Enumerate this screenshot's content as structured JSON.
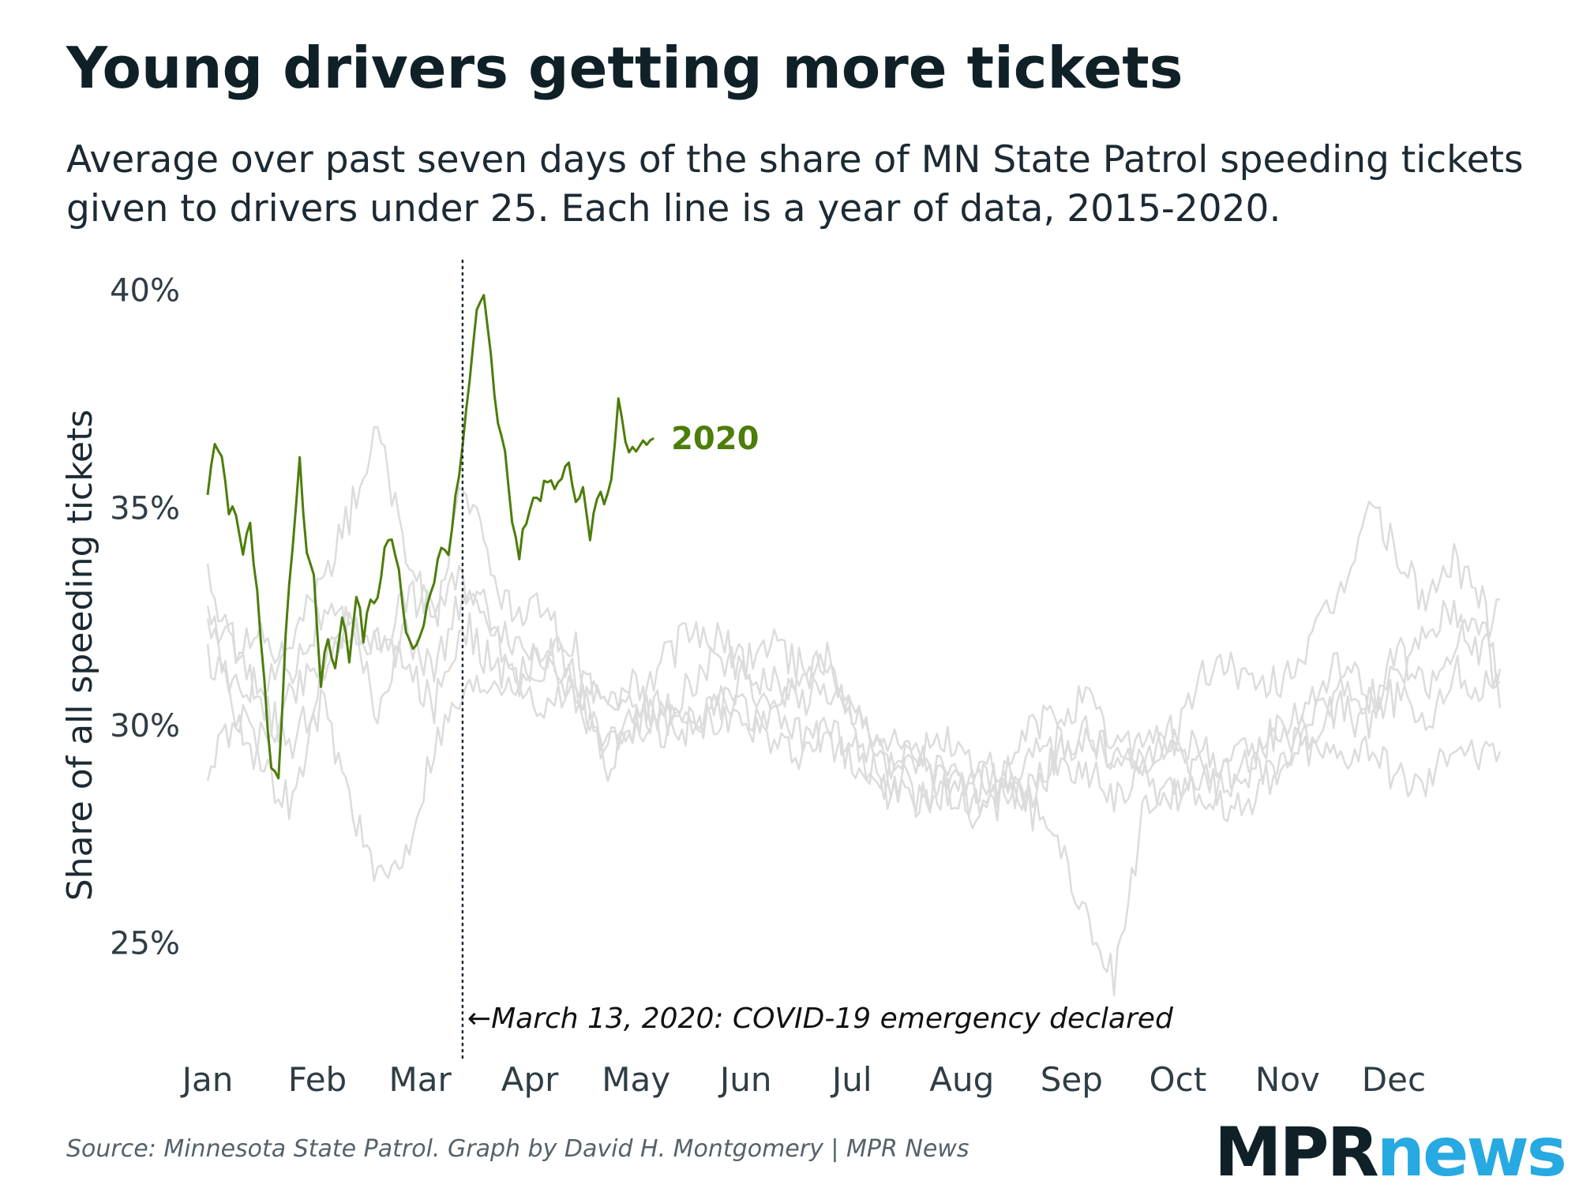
{
  "title": "Young drivers getting more tickets",
  "subtitle": "Average over past seven days of the share of MN State Patrol speeding tickets given to drivers under 25. Each line is a year of data, 2015-2020.",
  "source": "Source: Minnesota State Patrol. Graph by David H. Montgomery | MPR News",
  "logo": {
    "part1": "MPR",
    "part2": "news"
  },
  "colors": {
    "highlight": "#4d7d0a",
    "background_lines": "#dcdcdc",
    "text": "#1c2a33"
  },
  "chart_data": {
    "type": "line",
    "ylabel": "Share of all speeding tickets",
    "ylim": [
      23,
      40.5
    ],
    "yticks": [
      25,
      30,
      35,
      40
    ],
    "ytick_labels": [
      "25%",
      "30%",
      "35%",
      "40%"
    ],
    "x_unit": "day of year",
    "xlim": [
      1,
      366
    ],
    "month_ticks": [
      {
        "label": "Jan",
        "day": 1
      },
      {
        "label": "Feb",
        "day": 32
      },
      {
        "label": "Mar",
        "day": 61
      },
      {
        "label": "Apr",
        "day": 92
      },
      {
        "label": "May",
        "day": 122
      },
      {
        "label": "Jun",
        "day": 153
      },
      {
        "label": "Jul",
        "day": 183
      },
      {
        "label": "Aug",
        "day": 214
      },
      {
        "label": "Sep",
        "day": 245
      },
      {
        "label": "Oct",
        "day": 275
      },
      {
        "label": "Nov",
        "day": 306
      },
      {
        "label": "Dec",
        "day": 336
      }
    ],
    "grid": false,
    "annotation": {
      "day": 73,
      "text": "←March 13, 2020: COVID-19 emergency declared"
    },
    "series": [
      {
        "name": "2020",
        "highlight": true,
        "x": [
          1,
          3,
          5,
          7,
          9,
          11,
          13,
          15,
          17,
          19,
          21,
          23,
          25,
          27,
          29,
          31,
          33,
          35,
          37,
          39,
          41,
          43,
          45,
          47,
          49,
          51,
          53,
          55,
          57,
          59,
          61,
          63,
          65,
          67,
          69,
          71,
          73,
          75,
          77,
          79,
          81,
          83,
          85,
          87,
          89,
          91,
          93,
          95,
          97,
          99,
          101,
          103,
          105,
          107,
          109,
          111,
          113,
          115,
          117,
          119,
          121,
          123,
          125,
          127
        ],
        "values": [
          35.3,
          36.6,
          36.2,
          35.0,
          34.8,
          34.0,
          34.6,
          33.1,
          31.0,
          29.0,
          28.9,
          31.9,
          34.2,
          36.0,
          34.0,
          33.4,
          31.0,
          32.0,
          31.3,
          32.6,
          31.5,
          33.1,
          32.0,
          32.9,
          32.9,
          34.0,
          34.4,
          33.6,
          32.3,
          31.7,
          31.9,
          32.8,
          33.3,
          34.1,
          34.0,
          35.2,
          36.5,
          37.8,
          39.4,
          39.8,
          38.5,
          37.0,
          36.4,
          34.6,
          33.9,
          34.8,
          35.2,
          35.3,
          35.6,
          35.4,
          35.8,
          35.9,
          35.3,
          35.4,
          34.2,
          35.3,
          35.2,
          35.8,
          37.5,
          36.4,
          36.4,
          36.5,
          36.6,
          36.6
        ]
      },
      {
        "name": "",
        "x": [
          1,
          9,
          17,
          25,
          33,
          41,
          49,
          57,
          65,
          73,
          81,
          89,
          97,
          105,
          113,
          121,
          129,
          137,
          145,
          153,
          161,
          169,
          177,
          185,
          193,
          201,
          209,
          217,
          225,
          233,
          241,
          249,
          257,
          265,
          273,
          281,
          289,
          297,
          305,
          313,
          321,
          329,
          337,
          345,
          353,
          361,
          366
        ],
        "values": [
          33.3,
          31.6,
          30.5,
          29.4,
          31.0,
          32.2,
          31.8,
          33.0,
          32.7,
          33.4,
          32.6,
          31.9,
          31.6,
          31.1,
          30.5,
          30.4,
          30.2,
          30.1,
          30.3,
          31.2,
          31.0,
          30.6,
          30.8,
          30.2,
          29.6,
          29.3,
          28.9,
          28.6,
          28.8,
          29.2,
          29.6,
          29.7,
          29.3,
          29.1,
          29.6,
          29.5,
          29.1,
          29.4,
          30.1,
          30.6,
          31.5,
          30.7,
          31.0,
          32.1,
          32.7,
          31.6,
          32.9
        ]
      },
      {
        "name": "",
        "x": [
          1,
          9,
          17,
          25,
          33,
          41,
          49,
          57,
          65,
          73,
          81,
          89,
          97,
          105,
          113,
          121,
          129,
          137,
          145,
          153,
          161,
          169,
          177,
          185,
          193,
          201,
          209,
          217,
          225,
          233,
          241,
          249,
          257,
          265,
          273,
          281,
          289,
          297,
          305,
          313,
          321,
          329,
          337,
          345,
          353,
          361,
          366
        ],
        "values": [
          29.0,
          30.2,
          29.6,
          30.8,
          31.5,
          32.4,
          30.3,
          32.1,
          31.3,
          33.0,
          32.4,
          31.0,
          30.4,
          30.9,
          29.5,
          29.8,
          30.5,
          29.7,
          30.5,
          30.4,
          29.4,
          29.3,
          29.9,
          29.0,
          28.5,
          28.2,
          28.7,
          28.0,
          28.3,
          28.6,
          29.2,
          28.9,
          28.4,
          28.9,
          29.8,
          28.4,
          28.6,
          29.0,
          29.1,
          29.9,
          30.4,
          29.9,
          31.8,
          30.9,
          31.8,
          32.5,
          30.4
        ]
      },
      {
        "name": "",
        "x": [
          1,
          9,
          17,
          25,
          33,
          41,
          49,
          57,
          65,
          73,
          81,
          89,
          97,
          105,
          113,
          121,
          129,
          137,
          145,
          153,
          161,
          169,
          177,
          185,
          193,
          201,
          209,
          217,
          225,
          233,
          241,
          249,
          257,
          265,
          273,
          281,
          289,
          297,
          305,
          313,
          321,
          329,
          337,
          345,
          353,
          361,
          366
        ],
        "values": [
          32.8,
          30.3,
          28.9,
          28.2,
          30.6,
          28.4,
          26.3,
          27.1,
          29.6,
          30.7,
          31.1,
          31.1,
          31.9,
          31.9,
          29.0,
          30.0,
          31.4,
          32.1,
          31.9,
          31.5,
          32.0,
          31.2,
          31.5,
          29.4,
          28.5,
          29.2,
          29.7,
          29.0,
          28.6,
          29.9,
          30.2,
          30.6,
          29.5,
          29.8,
          29.5,
          31.0,
          31.5,
          30.7,
          31.1,
          31.9,
          33.0,
          35.1,
          33.9,
          32.8,
          33.8,
          32.9,
          31.0
        ]
      },
      {
        "name": "",
        "x": [
          1,
          9,
          17,
          25,
          33,
          41,
          49,
          57,
          65,
          73,
          81,
          89,
          97,
          105,
          113,
          121,
          129,
          137,
          145,
          153,
          161,
          169,
          177,
          185,
          193,
          201,
          209,
          217,
          225,
          233,
          241,
          249,
          257,
          265,
          273,
          281,
          289,
          297,
          305,
          313,
          321,
          329,
          337,
          345,
          353,
          361,
          366
        ],
        "values": [
          32.3,
          31.9,
          32.1,
          31.4,
          32.5,
          32.3,
          32.0,
          31.3,
          30.5,
          32.4,
          31.4,
          31.0,
          31.3,
          30.7,
          30.6,
          31.0,
          30.0,
          30.9,
          31.6,
          31.2,
          30.3,
          31.5,
          31.3,
          30.0,
          29.3,
          28.3,
          28.5,
          28.7,
          29.2,
          28.1,
          27.5,
          25.6,
          24.2,
          27.9,
          28.5,
          29.0,
          28.2,
          28.4,
          29.2,
          30.2,
          30.9,
          30.6,
          30.6,
          30.1,
          31.2,
          30.8,
          31.3
        ]
      },
      {
        "name": "",
        "x": [
          1,
          9,
          17,
          25,
          33,
          41,
          49,
          57,
          65,
          73,
          81,
          89,
          97,
          105,
          113,
          121,
          129,
          137,
          145,
          153,
          161,
          169,
          177,
          185,
          193,
          201,
          209,
          217,
          225,
          233,
          241,
          249,
          257,
          265,
          273,
          281,
          289,
          297,
          305,
          313,
          321,
          329,
          337,
          345,
          353,
          361,
          366
        ],
        "values": [
          31.5,
          30.8,
          31.1,
          32.0,
          33.3,
          34.8,
          36.8,
          33.9,
          32.3,
          35.7,
          33.5,
          32.3,
          32.8,
          30.7,
          29.4,
          30.0,
          29.7,
          30.0,
          30.2,
          29.9,
          30.5,
          29.7,
          29.6,
          29.3,
          29.0,
          29.2,
          28.8,
          28.2,
          28.6,
          28.3,
          29.3,
          29.9,
          29.0,
          29.1,
          28.3,
          28.9,
          28.9,
          29.4,
          29.7,
          29.4,
          29.3,
          29.6,
          28.8,
          28.6,
          29.7,
          29.2,
          29.4
        ]
      }
    ],
    "series_label": "2020"
  }
}
